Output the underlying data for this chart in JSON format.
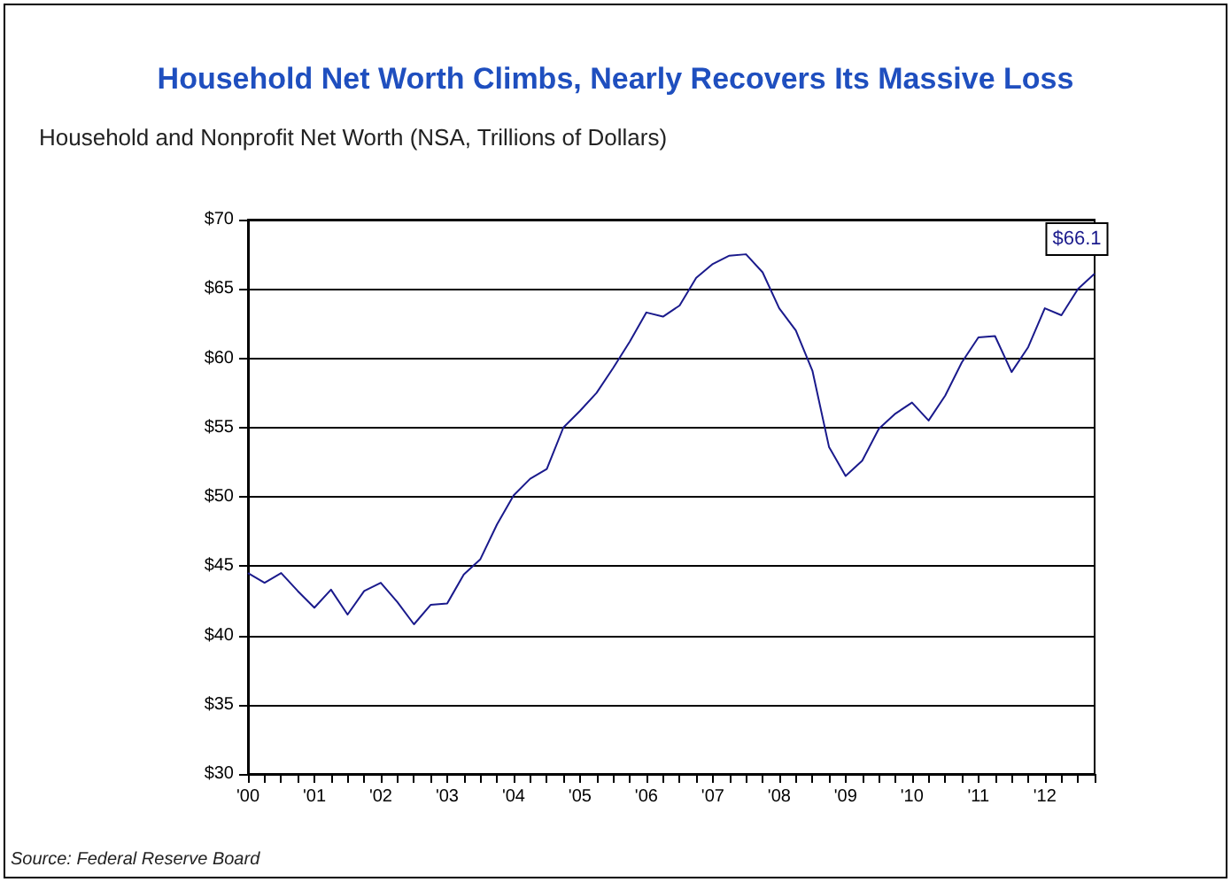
{
  "chart_data": {
    "type": "line",
    "title": "Household Net Worth Climbs, Nearly Recovers Its Massive Loss",
    "subtitle": "Household and Nonprofit Net Worth (NSA, Trillions of Dollars)",
    "annotations": [
      "Source: Federal Reserve Board"
    ],
    "categories": [
      "'00",
      null,
      null,
      null,
      "'01",
      null,
      null,
      null,
      "'02",
      null,
      null,
      null,
      "'03",
      null,
      null,
      null,
      "'04",
      null,
      null,
      null,
      "'05",
      null,
      null,
      null,
      "'06",
      null,
      null,
      null,
      "'07",
      null,
      null,
      null,
      "'08",
      null,
      null,
      null,
      "'09",
      null,
      null,
      null,
      "'10",
      null,
      null,
      null,
      "'11",
      null,
      null,
      null,
      "'12",
      null,
      null,
      null
    ],
    "series": [
      {
        "color": "#1a1a8c",
        "values": [
          44.5,
          43.8,
          44.5,
          43.2,
          42.0,
          43.3,
          41.5,
          43.2,
          43.8,
          42.4,
          40.8,
          42.2,
          42.3,
          44.4,
          45.5,
          48.0,
          50.1,
          51.3,
          52.0,
          55.0,
          56.2,
          57.5,
          59.3,
          61.2,
          63.3,
          63.0,
          63.8,
          65.8,
          66.8,
          67.4,
          67.5,
          66.2,
          63.6,
          62.0,
          59.1,
          53.6,
          51.5,
          52.6,
          54.9,
          56.0,
          56.8,
          55.5,
          57.3,
          59.7,
          61.5,
          61.6,
          59.0,
          60.8,
          63.6,
          63.1,
          65.0,
          66.1
        ],
        "value_labels": [
          null,
          null,
          null,
          null,
          null,
          null,
          null,
          null,
          null,
          null,
          null,
          null,
          null,
          null,
          null,
          null,
          null,
          null,
          null,
          null,
          null,
          null,
          null,
          null,
          null,
          null,
          null,
          null,
          null,
          null,
          null,
          null,
          null,
          null,
          null,
          null,
          null,
          null,
          null,
          null,
          null,
          null,
          null,
          null,
          null,
          null,
          null,
          null,
          null,
          null,
          null,
          "$66.1"
        ]
      }
    ],
    "ylim": [
      30,
      70
    ],
    "yticks": [
      {
        "value": 30,
        "label": "$30"
      },
      {
        "value": 35,
        "label": "$35"
      },
      {
        "value": 40,
        "label": "$40"
      },
      {
        "value": 45,
        "label": "$45"
      },
      {
        "value": 50,
        "label": "$50"
      },
      {
        "value": 55,
        "label": "$55"
      },
      {
        "value": 60,
        "label": "$60"
      },
      {
        "value": 65,
        "label": "$65"
      },
      {
        "value": 70,
        "label": "$70"
      }
    ],
    "grid": "y",
    "marker": "none",
    "line_style": "solid"
  }
}
